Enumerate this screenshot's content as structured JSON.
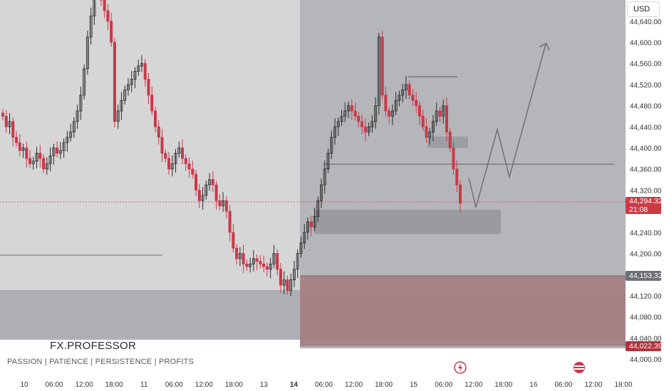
{
  "currency_button": "USD",
  "branding": {
    "name": "FX.PROFESSOR",
    "tagline": "PASSION  |  PATIENCE  |  PERSISTENCE  |  PROFITS"
  },
  "price_tags": {
    "current_price": "44,294.32",
    "countdown": "21:08",
    "level_high": "44,153.32",
    "level_low": "44,022.39"
  },
  "colors": {
    "up_candle": "#2b2b2b",
    "down_candle": "#c9384a",
    "zone_red": "#b07a80",
    "zone_gray": "#9a9ca2",
    "projection": "#6e7078"
  },
  "chart_data": {
    "type": "candlestick",
    "symbol_currency": "USD",
    "ylim": [
      44000,
      44660
    ],
    "y_ticks": [
      44000,
      44040,
      44080,
      44120,
      44160,
      44200,
      44240,
      44280,
      44320,
      44360,
      44400,
      44440,
      44480,
      44520,
      44560,
      44600,
      44640
    ],
    "y_tick_labels": [
      "44,000.00",
      "44,040.00",
      "44,080.00",
      "44,120.00",
      "44,160.00",
      "44,200.00",
      "44,240.00",
      "44,280.00",
      "44,320.00",
      "44,360.00",
      "44,400.00",
      "44,440.00",
      "44,480.00",
      "44,520.00",
      "44,560.00",
      "44,600.00",
      "44,640.00"
    ],
    "x_ticks": [
      "10",
      "06:00",
      "12:00",
      "18:00",
      "11",
      "06:00",
      "12:00",
      "18:00",
      "13",
      "14",
      "06:00",
      "12:00",
      "18:00",
      "15",
      "06:00",
      "12:00",
      "18:00",
      "16",
      "06:00",
      "12:00",
      "18:00"
    ],
    "current_price": 44294.32,
    "horizontal_levels": [
      44363,
      44196,
      44153.32,
      44022.39
    ],
    "zones": [
      {
        "name": "demand-zone",
        "from": 44022.39,
        "to": 44153.32
      },
      {
        "name": "gray-zone-lower",
        "from": 44022.39,
        "to": 44133
      },
      {
        "name": "order-block",
        "from": 44230,
        "to": 44285
      },
      {
        "name": "small-block",
        "from": 44400,
        "to": 44418
      }
    ],
    "projection_path": [
      44290,
      44450,
      44340,
      44640
    ],
    "candles_close": [
      44460,
      44440,
      44450,
      44420,
      44410,
      44395,
      44400,
      44380,
      44370,
      44375,
      44390,
      44380,
      44360,
      44370,
      44385,
      44400,
      44390,
      44395,
      44410,
      44420,
      44430,
      44450,
      44470,
      44500,
      44550,
      44610,
      44650,
      44700,
      44720,
      44680,
      44660,
      44640,
      44600,
      44450,
      44470,
      44490,
      44510,
      44520,
      44530,
      44545,
      44555,
      44560,
      44530,
      44500,
      44470,
      44440,
      44420,
      44390,
      44380,
      44360,
      44370,
      44390,
      44400,
      44380,
      44370,
      44360,
      44350,
      44320,
      44300,
      44310,
      44330,
      44340,
      44330,
      44300,
      44290,
      44300,
      44280,
      44240,
      44210,
      44190,
      44200,
      44180,
      44175,
      44180,
      44190,
      44185,
      44180,
      44175,
      44170,
      44180,
      44200,
      44170,
      44140,
      44150,
      44130,
      44150,
      44170,
      44200,
      44220,
      44240,
      44260,
      44250,
      44270,
      44300,
      44330,
      44360,
      44390,
      44420,
      44440,
      44450,
      44460,
      44470,
      44480,
      44470,
      44460,
      44450,
      44440,
      44430,
      44440,
      44450,
      44480,
      44610,
      44500,
      44470,
      44460,
      44470,
      44490,
      44500,
      44510,
      44520,
      44500,
      44490,
      44480,
      44460,
      44440,
      44420,
      44430,
      44450,
      44470,
      44460,
      44480,
      44430,
      44400,
      44360,
      44330,
      44295
    ]
  }
}
